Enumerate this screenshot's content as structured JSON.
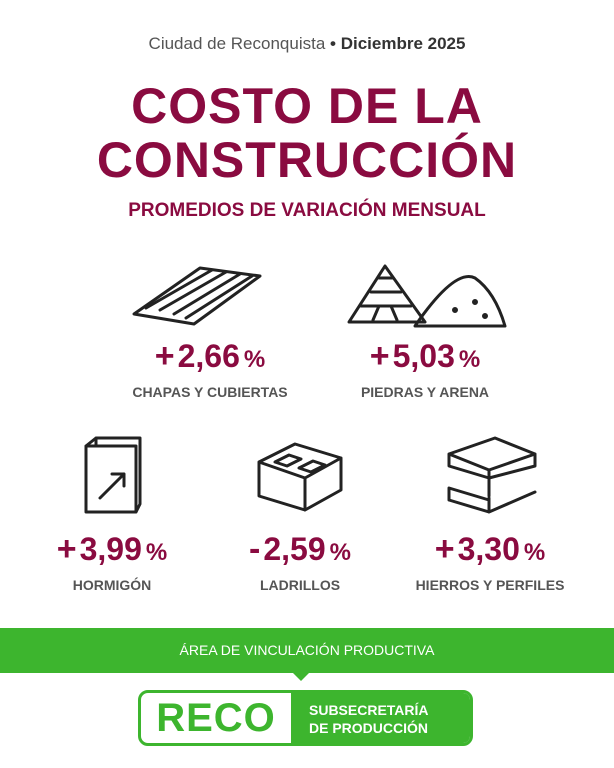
{
  "header": {
    "location": "Ciudad de Reconquista",
    "separator": "•",
    "date": "Diciembre 2025"
  },
  "title": {
    "line1": "COSTO DE LA",
    "line2": "CONSTRUCCIÓN"
  },
  "subtitle": "PROMEDIOS DE VARIACIÓN MENSUAL",
  "items": [
    {
      "sign": "+",
      "value": "2,66",
      "unit": "%",
      "label": "CHAPAS Y CUBIERTAS"
    },
    {
      "sign": "+",
      "value": "5,03",
      "unit": "%",
      "label": "PIEDRAS Y ARENA"
    },
    {
      "sign": "+",
      "value": "3,99",
      "unit": "%",
      "label": "HORMIGÓN"
    },
    {
      "sign": "-",
      "value": "2,59",
      "unit": "%",
      "label": "LADRILLOS"
    },
    {
      "sign": "+",
      "value": "3,30",
      "unit": "%",
      "label": "HIERROS Y PERFILES"
    }
  ],
  "footer": {
    "banner": "ÁREA DE VINCULACIÓN PRODUCTIVA",
    "logo": "RECO",
    "org_line1": "SUBSECRETARÍA",
    "org_line2": "DE PRODUCCIÓN"
  }
}
